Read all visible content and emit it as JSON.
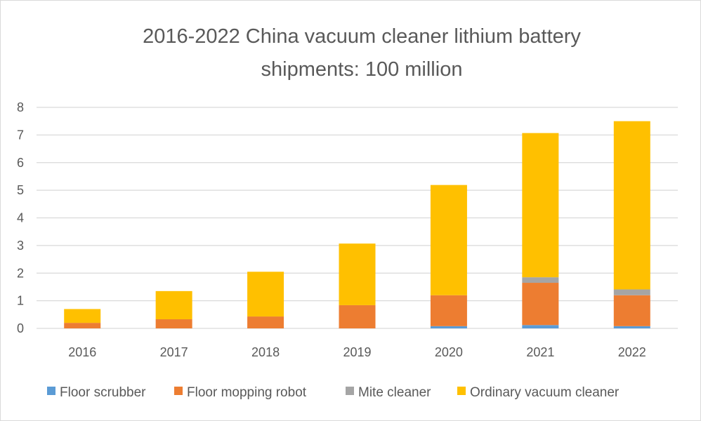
{
  "chart_data": {
    "type": "bar",
    "stacked": true,
    "title_lines": [
      "2016-2022 China vacuum cleaner lithium battery",
      "shipments: 100 million"
    ],
    "categories": [
      "2016",
      "2017",
      "2018",
      "2019",
      "2020",
      "2021",
      "2022"
    ],
    "series": [
      {
        "name": "Floor scrubber",
        "color": "#5b9bd5",
        "values": [
          0,
          0,
          0,
          0,
          0.08,
          0.12,
          0.08
        ]
      },
      {
        "name": "Floor mopping robot",
        "color": "#ed7d31",
        "values": [
          0.2,
          0.33,
          0.43,
          0.84,
          1.12,
          1.53,
          1.12
        ]
      },
      {
        "name": "Mite cleaner",
        "color": "#a5a5a5",
        "values": [
          0,
          0,
          0,
          0,
          0,
          0.2,
          0.21
        ]
      },
      {
        "name": "Ordinary vacuum cleaner",
        "color": "#ffc000",
        "values": [
          0.5,
          1.02,
          1.62,
          2.23,
          3.99,
          5.22,
          6.09
        ]
      }
    ],
    "yticks": [
      "0",
      "1",
      "2",
      "3",
      "4",
      "5",
      "6",
      "7",
      "8"
    ],
    "ylim": [
      0,
      8
    ],
    "grid": true,
    "legend_position": "bottom"
  }
}
